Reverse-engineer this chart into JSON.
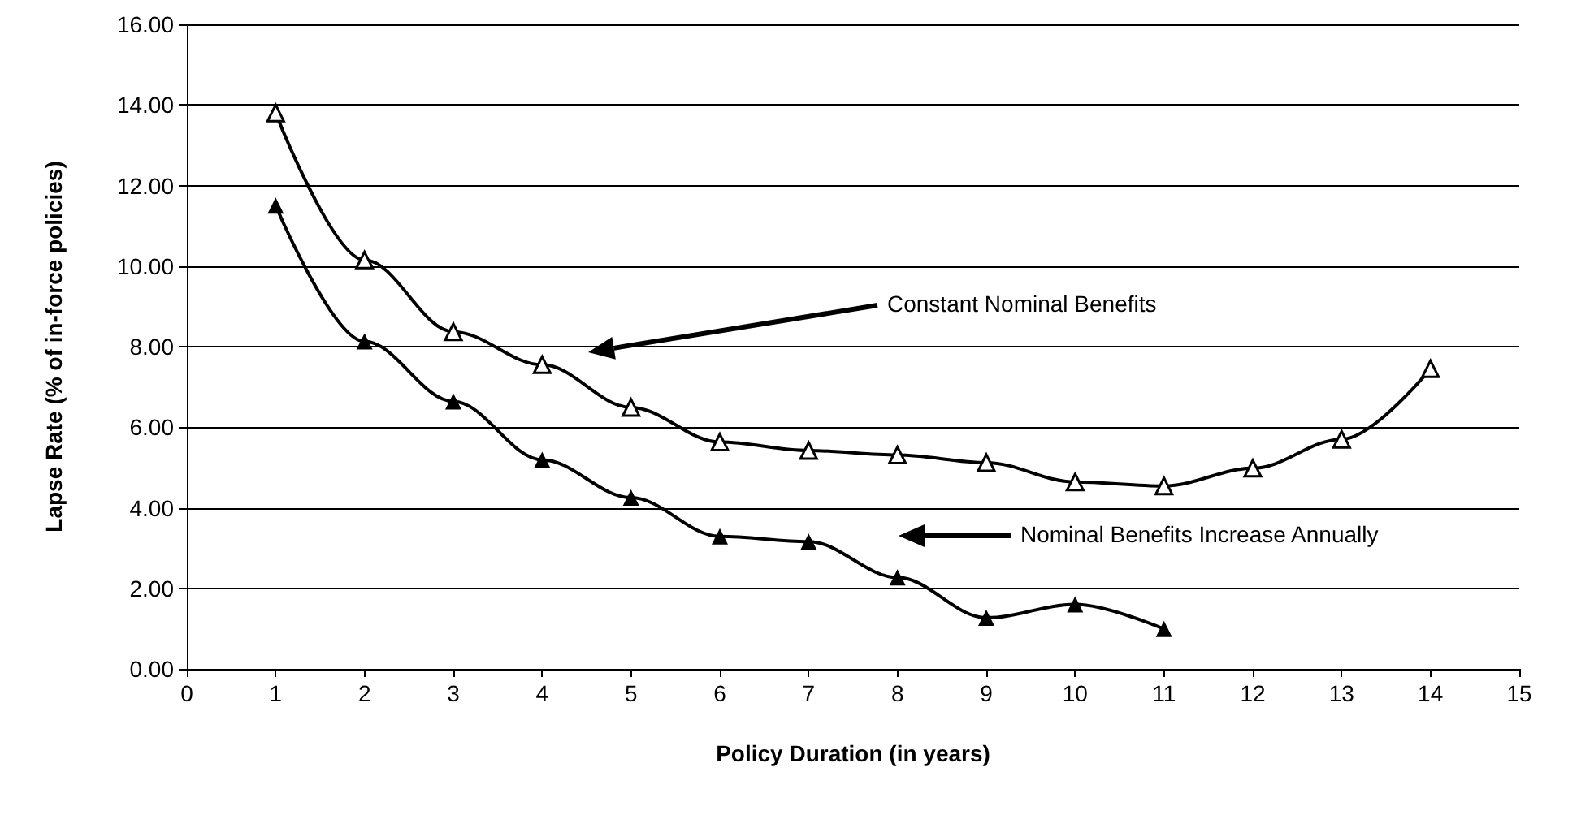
{
  "chart_data": {
    "type": "line",
    "xlabel": "Policy Duration (in years)",
    "ylabel": "Lapse Rate (% of in-force policies)",
    "x": [
      1,
      2,
      3,
      4,
      5,
      6,
      7,
      8,
      9,
      10,
      11,
      12,
      13,
      14
    ],
    "series": [
      {
        "color": "#000000",
        "marker": "triangle",
        "values": [
          13.8,
          10.15,
          8.37,
          7.55,
          6.49,
          5.63,
          5.42,
          5.31,
          5.12,
          4.64,
          4.54,
          4.98,
          5.7,
          7.45
        ]
      },
      {
        "color": "#000000",
        "marker": "triangle",
        "values": [
          11.5,
          8.13,
          6.64,
          5.19,
          4.25,
          3.29,
          3.16,
          2.27,
          1.27,
          1.6,
          0.99,
          null,
          null,
          null
        ]
      }
    ],
    "xlim": [
      0,
      15
    ],
    "xticks": [
      0,
      1,
      2,
      3,
      4,
      5,
      6,
      7,
      8,
      9,
      10,
      11,
      12,
      13,
      14,
      15
    ],
    "ylim": [
      0,
      16
    ],
    "yticks": [
      {
        "value": 0,
        "label": "0.00"
      },
      {
        "value": 2,
        "label": "2.00"
      },
      {
        "value": 4,
        "label": "4.00"
      },
      {
        "value": 6,
        "label": "6.00"
      },
      {
        "value": 8,
        "label": "8.00"
      },
      {
        "value": 10,
        "label": "10.00"
      },
      {
        "value": 12,
        "label": "12.00"
      },
      {
        "value": 14,
        "label": "14.00"
      },
      {
        "value": 16,
        "label": "16.00"
      }
    ],
    "grid": "y",
    "line_style": "solid",
    "annotations": [
      "Constant Nominal Benefits",
      "Nominal Benefits Increase Annually"
    ]
  }
}
